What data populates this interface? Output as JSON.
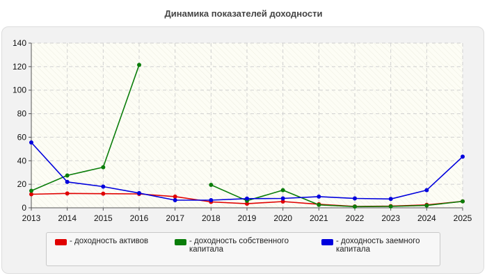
{
  "chart_data": {
    "type": "line",
    "title": "Динамика показателей доходности",
    "xlabel": "",
    "ylabel": "",
    "categories": [
      "2013",
      "2014",
      "2015",
      "2016",
      "2017",
      "2018",
      "2019",
      "2020",
      "2021",
      "2022",
      "2023",
      "2024",
      "2025"
    ],
    "ylim": [
      0,
      140
    ],
    "yticks": [
      0,
      20,
      40,
      60,
      80,
      100,
      120,
      140
    ],
    "grid": true,
    "legend": "bottom",
    "series": [
      {
        "name": "- доходность активов",
        "color": "#e00000",
        "values": [
          11.5,
          12.2,
          12.0,
          11.8,
          9.5,
          5.0,
          3.5,
          5.3,
          3.0,
          1.2,
          1.5,
          2.5,
          5.5
        ]
      },
      {
        "name": "- доходность собственного\nкапитала",
        "color": "#0a7d0a",
        "values": [
          14.5,
          27.5,
          34.5,
          121.5,
          null,
          19.5,
          6.0,
          15.0,
          2.5,
          1.0,
          1.2,
          2.0,
          5.5
        ]
      },
      {
        "name": "- доходность заемного\nкапитала",
        "color": "#0000dd",
        "values": [
          55.5,
          22.0,
          18.0,
          12.5,
          6.5,
          6.5,
          7.8,
          8.0,
          9.5,
          8.0,
          7.5,
          15.0,
          43.5
        ]
      }
    ]
  }
}
